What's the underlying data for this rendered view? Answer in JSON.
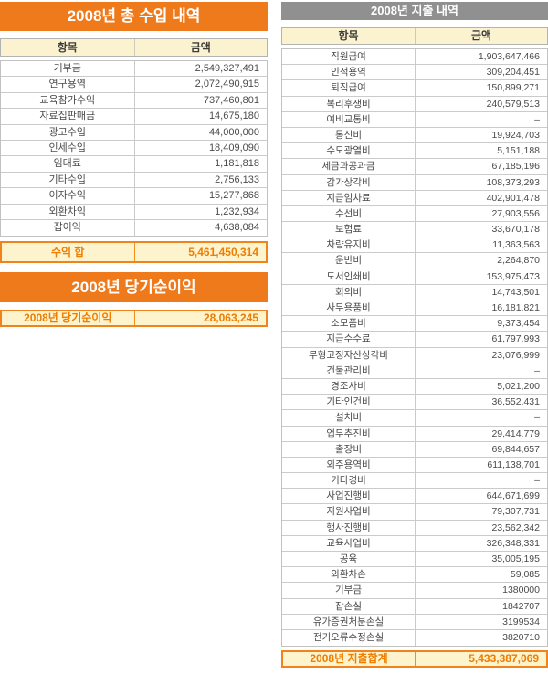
{
  "colors": {
    "accent_orange": "#ef7a1c",
    "header_gray": "#909090",
    "highlight_cream": "#fdf3cd",
    "total_text_orange": "#ee7d00"
  },
  "income_section": {
    "title": "2008년 총 수입 내역",
    "columns": {
      "item": "항목",
      "amount": "금액"
    },
    "rows": [
      {
        "item": "기부금",
        "amount": "2,549,327,491"
      },
      {
        "item": "연구용역",
        "amount": "2,072,490,915"
      },
      {
        "item": "교육참가수익",
        "amount": "737,460,801"
      },
      {
        "item": "자료집판매금",
        "amount": "14,675,180"
      },
      {
        "item": "광고수입",
        "amount": "44,000,000"
      },
      {
        "item": "인세수입",
        "amount": "18,409,090"
      },
      {
        "item": "임대료",
        "amount": "1,181,818"
      },
      {
        "item": "기타수입",
        "amount": "2,756,133"
      },
      {
        "item": "이자수익",
        "amount": "15,277,868"
      },
      {
        "item": "외환차익",
        "amount": "1,232,934"
      },
      {
        "item": "잡이익",
        "amount": "4,638,084"
      }
    ],
    "footer": {
      "item": "수익 합",
      "amount": "5,461,450,314"
    }
  },
  "net_income_section": {
    "title": "2008년 당기순이익",
    "row": {
      "item": "2008년 당기순이익",
      "amount": "28,063,245"
    }
  },
  "expense_section": {
    "title": "2008년 지출 내역",
    "columns": {
      "item": "항목",
      "amount": "금액"
    },
    "rows": [
      {
        "item": "직원급여",
        "amount": "1,903,647,466"
      },
      {
        "item": "인적용역",
        "amount": "309,204,451"
      },
      {
        "item": "퇴직급여",
        "amount": "150,899,271"
      },
      {
        "item": "복리후생비",
        "amount": "240,579,513"
      },
      {
        "item": "여비교통비",
        "amount": "–"
      },
      {
        "item": "통신비",
        "amount": "19,924,703"
      },
      {
        "item": "수도광열비",
        "amount": "5,151,188"
      },
      {
        "item": "세금과공과금",
        "amount": "67,185,196"
      },
      {
        "item": "감가상각비",
        "amount": "108,373,293"
      },
      {
        "item": "지급임차료",
        "amount": "402,901,478"
      },
      {
        "item": "수선비",
        "amount": "27,903,556"
      },
      {
        "item": "보험료",
        "amount": "33,670,178"
      },
      {
        "item": "차량유지비",
        "amount": "11,363,563"
      },
      {
        "item": "운반비",
        "amount": "2,264,870"
      },
      {
        "item": "도서인쇄비",
        "amount": "153,975,473"
      },
      {
        "item": "회의비",
        "amount": "14,743,501"
      },
      {
        "item": "사무용품비",
        "amount": "16,181,821"
      },
      {
        "item": "소모품비",
        "amount": "9,373,454"
      },
      {
        "item": "지급수수료",
        "amount": "61,797,993"
      },
      {
        "item": "무형고정자산상각비",
        "amount": "23,076,999"
      },
      {
        "item": "건물관리비",
        "amount": "–"
      },
      {
        "item": "경조사비",
        "amount": "5,021,200"
      },
      {
        "item": "기타인건비",
        "amount": "36,552,431"
      },
      {
        "item": "설치비",
        "amount": "–"
      },
      {
        "item": "업무추진비",
        "amount": "29,414,779"
      },
      {
        "item": "출장비",
        "amount": "69,844,657"
      },
      {
        "item": "외주용역비",
        "amount": "611,138,701"
      },
      {
        "item": "기타경비",
        "amount": "–"
      },
      {
        "item": "사업진행비",
        "amount": "644,671,699"
      },
      {
        "item": "지원사업비",
        "amount": "79,307,731"
      },
      {
        "item": "행사진행비",
        "amount": "23,562,342"
      },
      {
        "item": "교육사업비",
        "amount": "326,348,331"
      },
      {
        "item": "공육",
        "amount": "35,005,195"
      },
      {
        "item": "외환차손",
        "amount": "59,085"
      },
      {
        "item": "기부금",
        "amount": "1380000"
      },
      {
        "item": "잡손실",
        "amount": "1842707"
      },
      {
        "item": "유가증권처분손실",
        "amount": "3199534"
      },
      {
        "item": "전기오류수정손실",
        "amount": "3820710"
      }
    ],
    "footer": {
      "item": "2008년 지출합계",
      "amount": "5,433,387,069"
    }
  }
}
